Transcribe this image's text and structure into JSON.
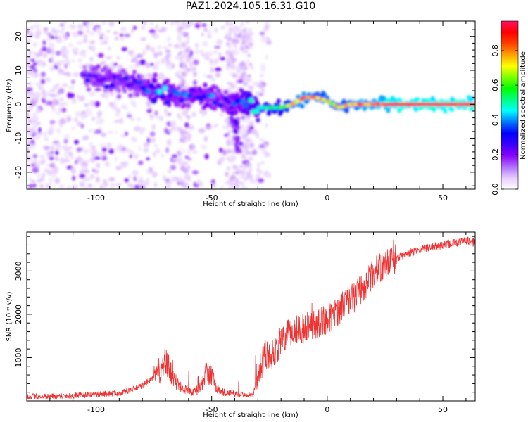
{
  "title": "PAZ1.2024.105.16.31.G10",
  "chart_data": [
    {
      "type": "heatmap",
      "xlabel": "Height of straight line (km)",
      "ylabel": "Frequency (Hz)",
      "xlim": [
        -130,
        64
      ],
      "ylim": [
        -25,
        24.5
      ],
      "xticks": [
        -100,
        -50,
        0,
        50
      ],
      "yticks": [
        -20,
        -10,
        0,
        10,
        20
      ],
      "colorbar": {
        "label": "Normalized spectral amplitude",
        "ticks": [
          0.0,
          0.2,
          0.4,
          0.6,
          0.8
        ],
        "range": [
          0,
          0.97
        ],
        "colormap": [
          "#ffffff",
          "#e6ccff",
          "#b070ff",
          "#8a00ff",
          "#3a00ff",
          "#0000ff",
          "#0078ff",
          "#00ffff",
          "#00ff80",
          "#00ff00",
          "#80ff00",
          "#ffff00",
          "#ffa000",
          "#ff4000",
          "#ff0000",
          "#ff1060"
        ]
      },
      "ridge": {
        "x": [
          -105,
          -95,
          -90,
          -85,
          -80,
          -75,
          -70,
          -65,
          -60,
          -55,
          -50,
          -45,
          -40,
          -35,
          -30,
          -25,
          -20,
          -15,
          -10,
          -5,
          0,
          5,
          10,
          15,
          20,
          25,
          30,
          40,
          50,
          64
        ],
        "freq": [
          8,
          7.5,
          7,
          6,
          5,
          4,
          3,
          2.5,
          2.5,
          2.5,
          2,
          1.5,
          1,
          0,
          -1,
          -1,
          -1,
          0,
          2,
          2,
          1,
          -1,
          0,
          0,
          0,
          0,
          0,
          0,
          0,
          0
        ],
        "amplitude": [
          0.25,
          0.3,
          0.3,
          0.3,
          0.3,
          0.4,
          0.4,
          0.35,
          0.35,
          0.35,
          0.35,
          0.3,
          0.35,
          0.45,
          0.5,
          0.55,
          0.6,
          0.75,
          0.85,
          0.8,
          0.75,
          0.75,
          0.8,
          0.85,
          0.85,
          0.9,
          0.95,
          0.95,
          0.95,
          0.95
        ]
      }
    },
    {
      "type": "line",
      "xlabel": "Height of straight line (km)",
      "ylabel": "SNR (10 * v/v)",
      "xlim": [
        -130,
        64
      ],
      "ylim": [
        0,
        3900
      ],
      "xticks": [
        -100,
        -50,
        0,
        50
      ],
      "yticks": [
        1000,
        2000,
        3000
      ],
      "color": "#ee3333",
      "series": [
        {
          "x": [
            -130,
            -120,
            -110,
            -100,
            -90,
            -85,
            -80,
            -75,
            -72,
            -70,
            -68,
            -66,
            -62,
            -58,
            -55,
            -52,
            -50,
            -48,
            -45,
            -42,
            -38,
            -35,
            -32,
            -30,
            -28,
            -27,
            -25,
            -22,
            -20,
            -18,
            -15,
            -12,
            -10,
            -8,
            -5,
            -2,
            0,
            2,
            5,
            8,
            10,
            12,
            15,
            18,
            20,
            22,
            25,
            28,
            30,
            35,
            40,
            45,
            50,
            55,
            60,
            64
          ],
          "y": [
            100,
            110,
            120,
            150,
            180,
            250,
            350,
            550,
            750,
            850,
            700,
            450,
            300,
            200,
            300,
            650,
            600,
            300,
            200,
            180,
            150,
            150,
            140,
            700,
            900,
            1100,
            1000,
            1200,
            1350,
            1500,
            1600,
            1700,
            1650,
            1800,
            1750,
            1850,
            1900,
            1950,
            2100,
            2300,
            2350,
            2400,
            2600,
            2800,
            2950,
            3050,
            3150,
            3250,
            3300,
            3400,
            3500,
            3550,
            3600,
            3650,
            3700,
            3650
          ]
        }
      ]
    }
  ]
}
